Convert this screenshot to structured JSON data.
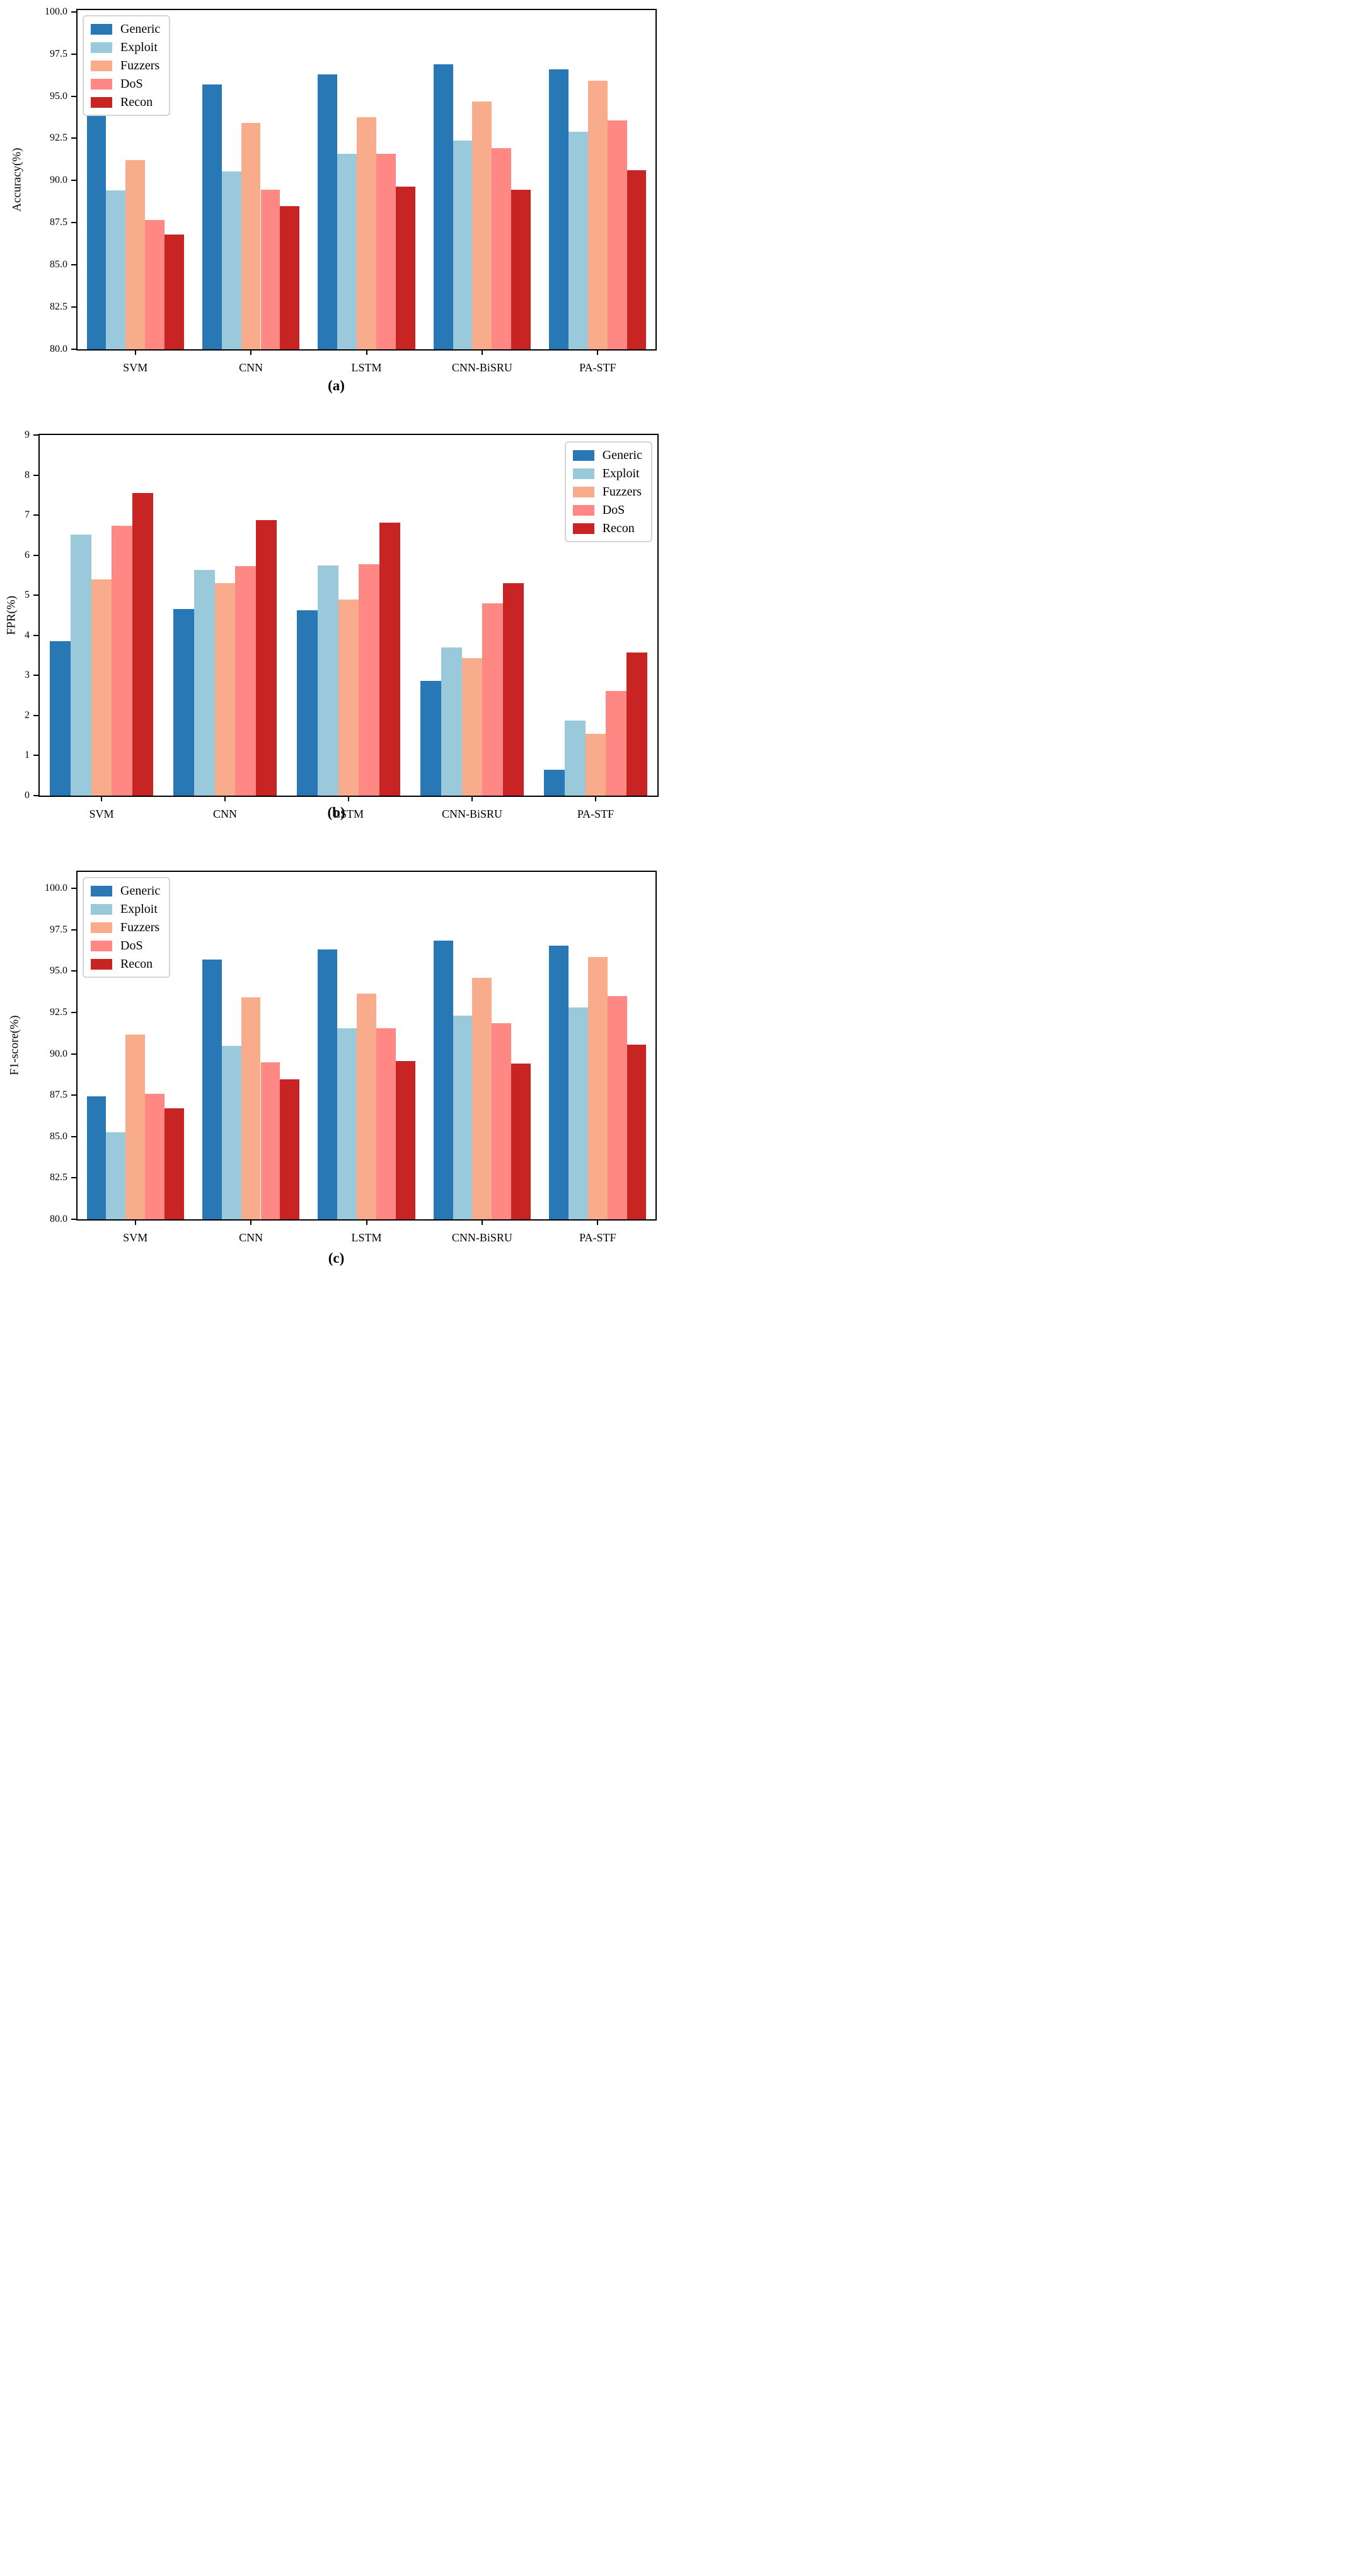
{
  "figure": {
    "description": "Three stacked grouped bar charts comparing intrusion-detection models per attack category",
    "background": "#FFFFFF"
  },
  "palette": {
    "generic": "#2878B5",
    "exploit": "#9AC9DB",
    "fuzzers": "#F8AC8C",
    "dos": "#FF8884",
    "recon": "#C82423",
    "axis": "#000000",
    "legend_border": "#D4D4D4"
  },
  "legend_labels": [
    "Generic",
    "Exploit",
    "Fuzzers",
    "DoS",
    "Recon"
  ],
  "categories": [
    "SVM",
    "CNN",
    "LSTM",
    "CNN-BiSRU",
    "PA-STF"
  ],
  "chart_data": [
    {
      "panel": "a",
      "type": "bar",
      "title": "",
      "xlabel": "",
      "ylabel": "Accuracy(%)",
      "caption": "(a)",
      "ylim": [
        80,
        100
      ],
      "grid": false,
      "legend_position": "top-left",
      "yticks": [
        "100.0",
        "97.5",
        "95.0",
        "92.5",
        "90.0",
        "87.5",
        "85.0",
        "82.5",
        "80.0"
      ],
      "categories": [
        "SVM",
        "CNN",
        "LSTM",
        "CNN-BiSRU",
        "PA-STF"
      ],
      "series": [
        {
          "name": "Generic",
          "color_key": "generic",
          "values": [
            94.3,
            95.7,
            96.3,
            96.9,
            96.6
          ]
        },
        {
          "name": "Exploit",
          "color_key": "exploit",
          "values": [
            89.4,
            90.55,
            91.6,
            92.35,
            92.9
          ]
        },
        {
          "name": "Fuzzers",
          "color_key": "fuzzers",
          "values": [
            91.2,
            93.4,
            93.75,
            94.7,
            95.9
          ]
        },
        {
          "name": "DoS",
          "color_key": "dos",
          "values": [
            87.65,
            89.45,
            91.6,
            91.9,
            93.55
          ]
        },
        {
          "name": "Recon",
          "color_key": "recon",
          "values": [
            86.8,
            88.5,
            89.65,
            89.45,
            90.6
          ]
        }
      ]
    },
    {
      "panel": "b",
      "type": "bar",
      "title": "",
      "xlabel": "",
      "ylabel": "FPR(%)",
      "caption": "(b)",
      "ylim": [
        0,
        9
      ],
      "grid": false,
      "legend_position": "top-right",
      "yticks": [
        "9",
        "8",
        "7",
        "6",
        "5",
        "4",
        "3",
        "2",
        "1",
        "0"
      ],
      "categories": [
        "SVM",
        "CNN",
        "LSTM",
        "CNN-BiSRU",
        "PA-STF"
      ],
      "series": [
        {
          "name": "Generic",
          "color_key": "generic",
          "values": [
            3.85,
            4.65,
            4.63,
            2.87,
            0.65
          ]
        },
        {
          "name": "Exploit",
          "color_key": "exploit",
          "values": [
            6.52,
            5.63,
            5.75,
            3.7,
            1.88
          ]
        },
        {
          "name": "Fuzzers",
          "color_key": "fuzzers",
          "values": [
            5.4,
            5.3,
            4.9,
            3.43,
            1.55
          ]
        },
        {
          "name": "DoS",
          "color_key": "dos",
          "values": [
            6.73,
            5.73,
            5.78,
            4.8,
            2.62
          ]
        },
        {
          "name": "Recon",
          "color_key": "recon",
          "values": [
            7.55,
            6.87,
            6.82,
            5.3,
            3.57
          ]
        }
      ]
    },
    {
      "panel": "c",
      "type": "bar",
      "title": "",
      "xlabel": "",
      "ylabel": "F1-score(%)",
      "caption": "(c)",
      "ylim": [
        80,
        100
      ],
      "grid": false,
      "legend_position": "top-left",
      "yticks": [
        "100.0",
        "97.5",
        "95.0",
        "92.5",
        "90.0",
        "87.5",
        "85.0",
        "82.5",
        "80.0"
      ],
      "categories": [
        "SVM",
        "CNN",
        "LSTM",
        "CNN-BiSRU",
        "PA-STF"
      ],
      "series": [
        {
          "name": "Generic",
          "color_key": "generic",
          "values": [
            87.45,
            95.7,
            96.3,
            96.85,
            96.55
          ]
        },
        {
          "name": "Exploit",
          "color_key": "exploit",
          "values": [
            85.25,
            90.5,
            91.55,
            92.3,
            92.8
          ]
        },
        {
          "name": "Fuzzers",
          "color_key": "fuzzers",
          "values": [
            91.15,
            93.4,
            93.65,
            94.6,
            95.85
          ]
        },
        {
          "name": "DoS",
          "color_key": "dos",
          "values": [
            87.6,
            89.5,
            91.55,
            91.85,
            93.5
          ]
        },
        {
          "name": "Recon",
          "color_key": "recon",
          "values": [
            86.7,
            88.45,
            89.55,
            89.4,
            90.55
          ]
        }
      ]
    }
  ]
}
